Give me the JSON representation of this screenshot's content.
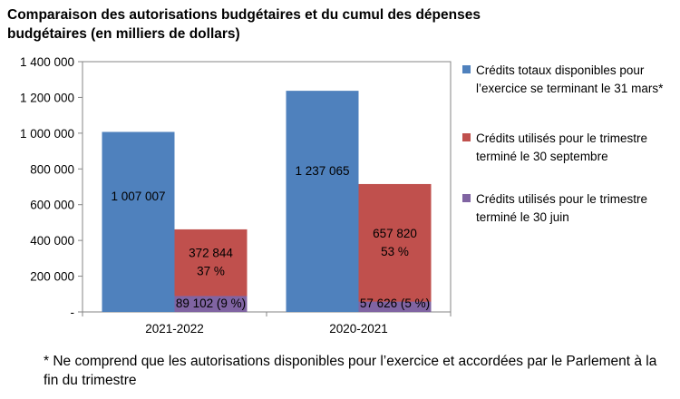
{
  "title": "Comparaison des autorisations budgétaires et du cumul des dépenses budgétaires (en milliers de dollars)",
  "footnote": "* Ne comprend que les autorisations disponibles pour l’exercice et accordées par le Parlement à la fin du trimestre",
  "colors": {
    "blue": "#4F81BD",
    "red": "#C0504D",
    "purple": "#8064A2"
  },
  "chart_data": {
    "type": "bar",
    "categories": [
      "2021-2022",
      "2020-2021"
    ],
    "ylim": [
      0,
      1400000
    ],
    "yticks": [
      0,
      200000,
      400000,
      600000,
      800000,
      1000000,
      1200000,
      1400000
    ],
    "ytick_labels": [
      "-",
      "200 000",
      "400 000",
      "600 000",
      "800 000",
      "1 000 000",
      "1 200 000",
      "1 400 000"
    ],
    "series": [
      {
        "name": "Crédits totaux disponibles pour l’exercice se terminant le 31 mars*",
        "color": "#4F81BD",
        "values": [
          1007007,
          1237065
        ],
        "labels": [
          [
            "1 007 007"
          ],
          [
            "1 237 065"
          ]
        ]
      },
      {
        "name": "Crédits utilisés pour le trimestre terminé le 30 septembre",
        "color": "#C0504D",
        "values": [
          461946,
          715446
        ],
        "labels": [
          [
            "372 844",
            "37 %"
          ],
          [
            "657 820",
            "53 %"
          ]
        ]
      },
      {
        "name": "Crédits utilisés pour le trimestre terminé le 30 juin",
        "color": "#8064A2",
        "values": [
          89102,
          57626
        ],
        "labels": [
          [
            "89 102 (9 %)"
          ],
          [
            "57 626 (5 %)"
          ]
        ]
      }
    ],
    "legend_position": "right"
  }
}
